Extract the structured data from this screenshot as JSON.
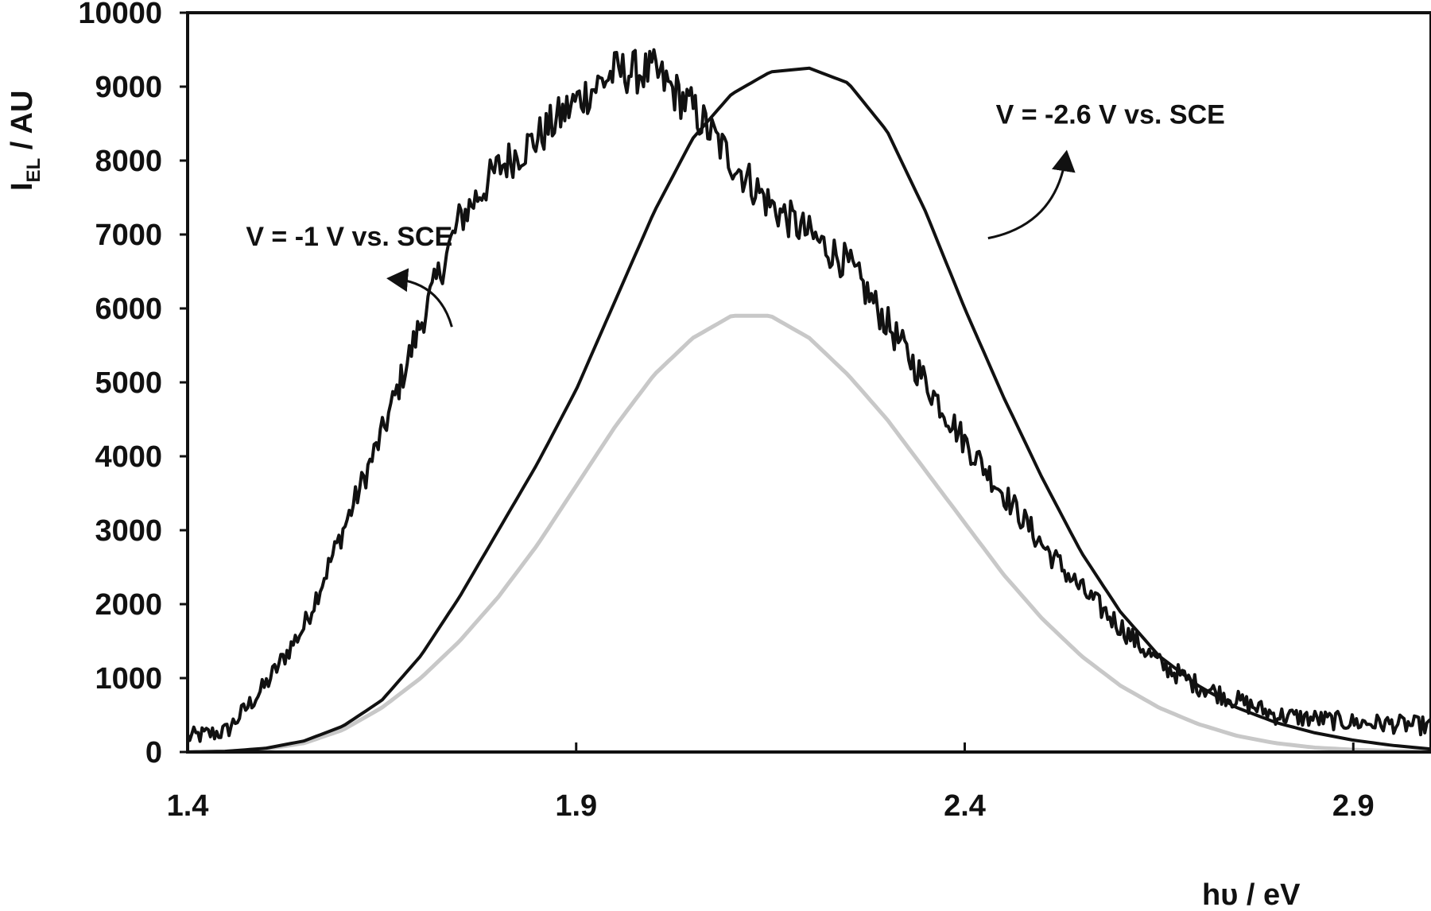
{
  "chart_data": {
    "type": "line",
    "title": "",
    "xlabel": "hυ / eV",
    "ylabel_main": "I",
    "ylabel_sub": "EL",
    "ylabel_rest": " / AU",
    "xlim": [
      1.4,
      3.0
    ],
    "ylim": [
      0,
      10000
    ],
    "xticks": [
      1.4,
      1.9,
      2.4,
      2.9
    ],
    "xtick_labels": [
      "1.4",
      "1.9",
      "2.4",
      "2.9"
    ],
    "yticks": [
      0,
      1000,
      2000,
      3000,
      4000,
      5000,
      6000,
      7000,
      8000,
      9000,
      10000
    ],
    "ytick_labels": [
      "0",
      "1000",
      "2000",
      "3000",
      "4000",
      "5000",
      "6000",
      "7000",
      "8000",
      "9000",
      "10000"
    ],
    "grid": false,
    "legend": "none",
    "colors": {
      "axis": "#111111",
      "curve_dark": "#111111",
      "curve_light": "#c8c8c8"
    },
    "series": [
      {
        "color": "#111111",
        "noisy": true,
        "x": [
          1.4,
          1.45,
          1.5,
          1.55,
          1.6,
          1.65,
          1.7,
          1.75,
          1.8,
          1.85,
          1.9,
          1.95,
          2.0,
          2.05,
          2.1,
          2.15,
          2.2,
          2.25,
          2.3,
          2.35,
          2.4,
          2.45,
          2.5,
          2.55,
          2.6,
          2.65,
          2.7,
          2.75,
          2.8,
          2.85,
          2.9,
          2.95,
          3.0
        ],
        "values": [
          200,
          280,
          900,
          1700,
          3000,
          4300,
          5800,
          7200,
          7900,
          8300,
          8800,
          9200,
          9200,
          8700,
          8000,
          7400,
          7000,
          6600,
          5800,
          5000,
          4200,
          3500,
          2800,
          2200,
          1700,
          1200,
          900,
          700,
          500,
          450,
          400,
          380,
          350
        ]
      },
      {
        "color": "#111111",
        "noisy": false,
        "x": [
          1.4,
          1.45,
          1.5,
          1.55,
          1.6,
          1.65,
          1.7,
          1.75,
          1.8,
          1.85,
          1.9,
          1.95,
          2.0,
          2.05,
          2.1,
          2.15,
          2.2,
          2.25,
          2.3,
          2.35,
          2.4,
          2.45,
          2.5,
          2.55,
          2.6,
          2.65,
          2.7,
          2.75,
          2.8,
          2.85,
          2.9,
          2.95,
          3.0
        ],
        "values": [
          0,
          10,
          50,
          150,
          350,
          700,
          1300,
          2100,
          3000,
          3900,
          4900,
          6100,
          7300,
          8300,
          8900,
          9200,
          9250,
          9050,
          8400,
          7300,
          6000,
          4800,
          3700,
          2700,
          1900,
          1300,
          900,
          600,
          400,
          260,
          160,
          90,
          40
        ]
      },
      {
        "color": "#c8c8c8",
        "noisy": false,
        "x": [
          1.4,
          1.45,
          1.5,
          1.55,
          1.6,
          1.65,
          1.7,
          1.75,
          1.8,
          1.85,
          1.9,
          1.95,
          2.0,
          2.05,
          2.1,
          2.15,
          2.2,
          2.25,
          2.3,
          2.35,
          2.4,
          2.45,
          2.5,
          2.55,
          2.6,
          2.65,
          2.7,
          2.75,
          2.8,
          2.85,
          2.9,
          2.95,
          3.0
        ],
        "values": [
          0,
          5,
          40,
          120,
          300,
          600,
          1000,
          1500,
          2100,
          2800,
          3600,
          4400,
          5100,
          5600,
          5900,
          5900,
          5600,
          5100,
          4500,
          3800,
          3100,
          2400,
          1800,
          1300,
          900,
          600,
          380,
          220,
          120,
          60,
          30,
          15,
          5
        ]
      }
    ],
    "annotations": [
      {
        "text": "V = -1 V vs. SCE",
        "x": 1.475,
        "y": 6850,
        "arrow_tip": [
          1.665,
          6400
        ],
        "arrow_from": [
          1.74,
          5750
        ]
      },
      {
        "text": "V = -2.6 V vs. SCE",
        "x": 2.44,
        "y": 8500,
        "arrow_tip": [
          2.53,
          8050
        ],
        "arrow_from": [
          2.43,
          6950
        ]
      }
    ]
  }
}
